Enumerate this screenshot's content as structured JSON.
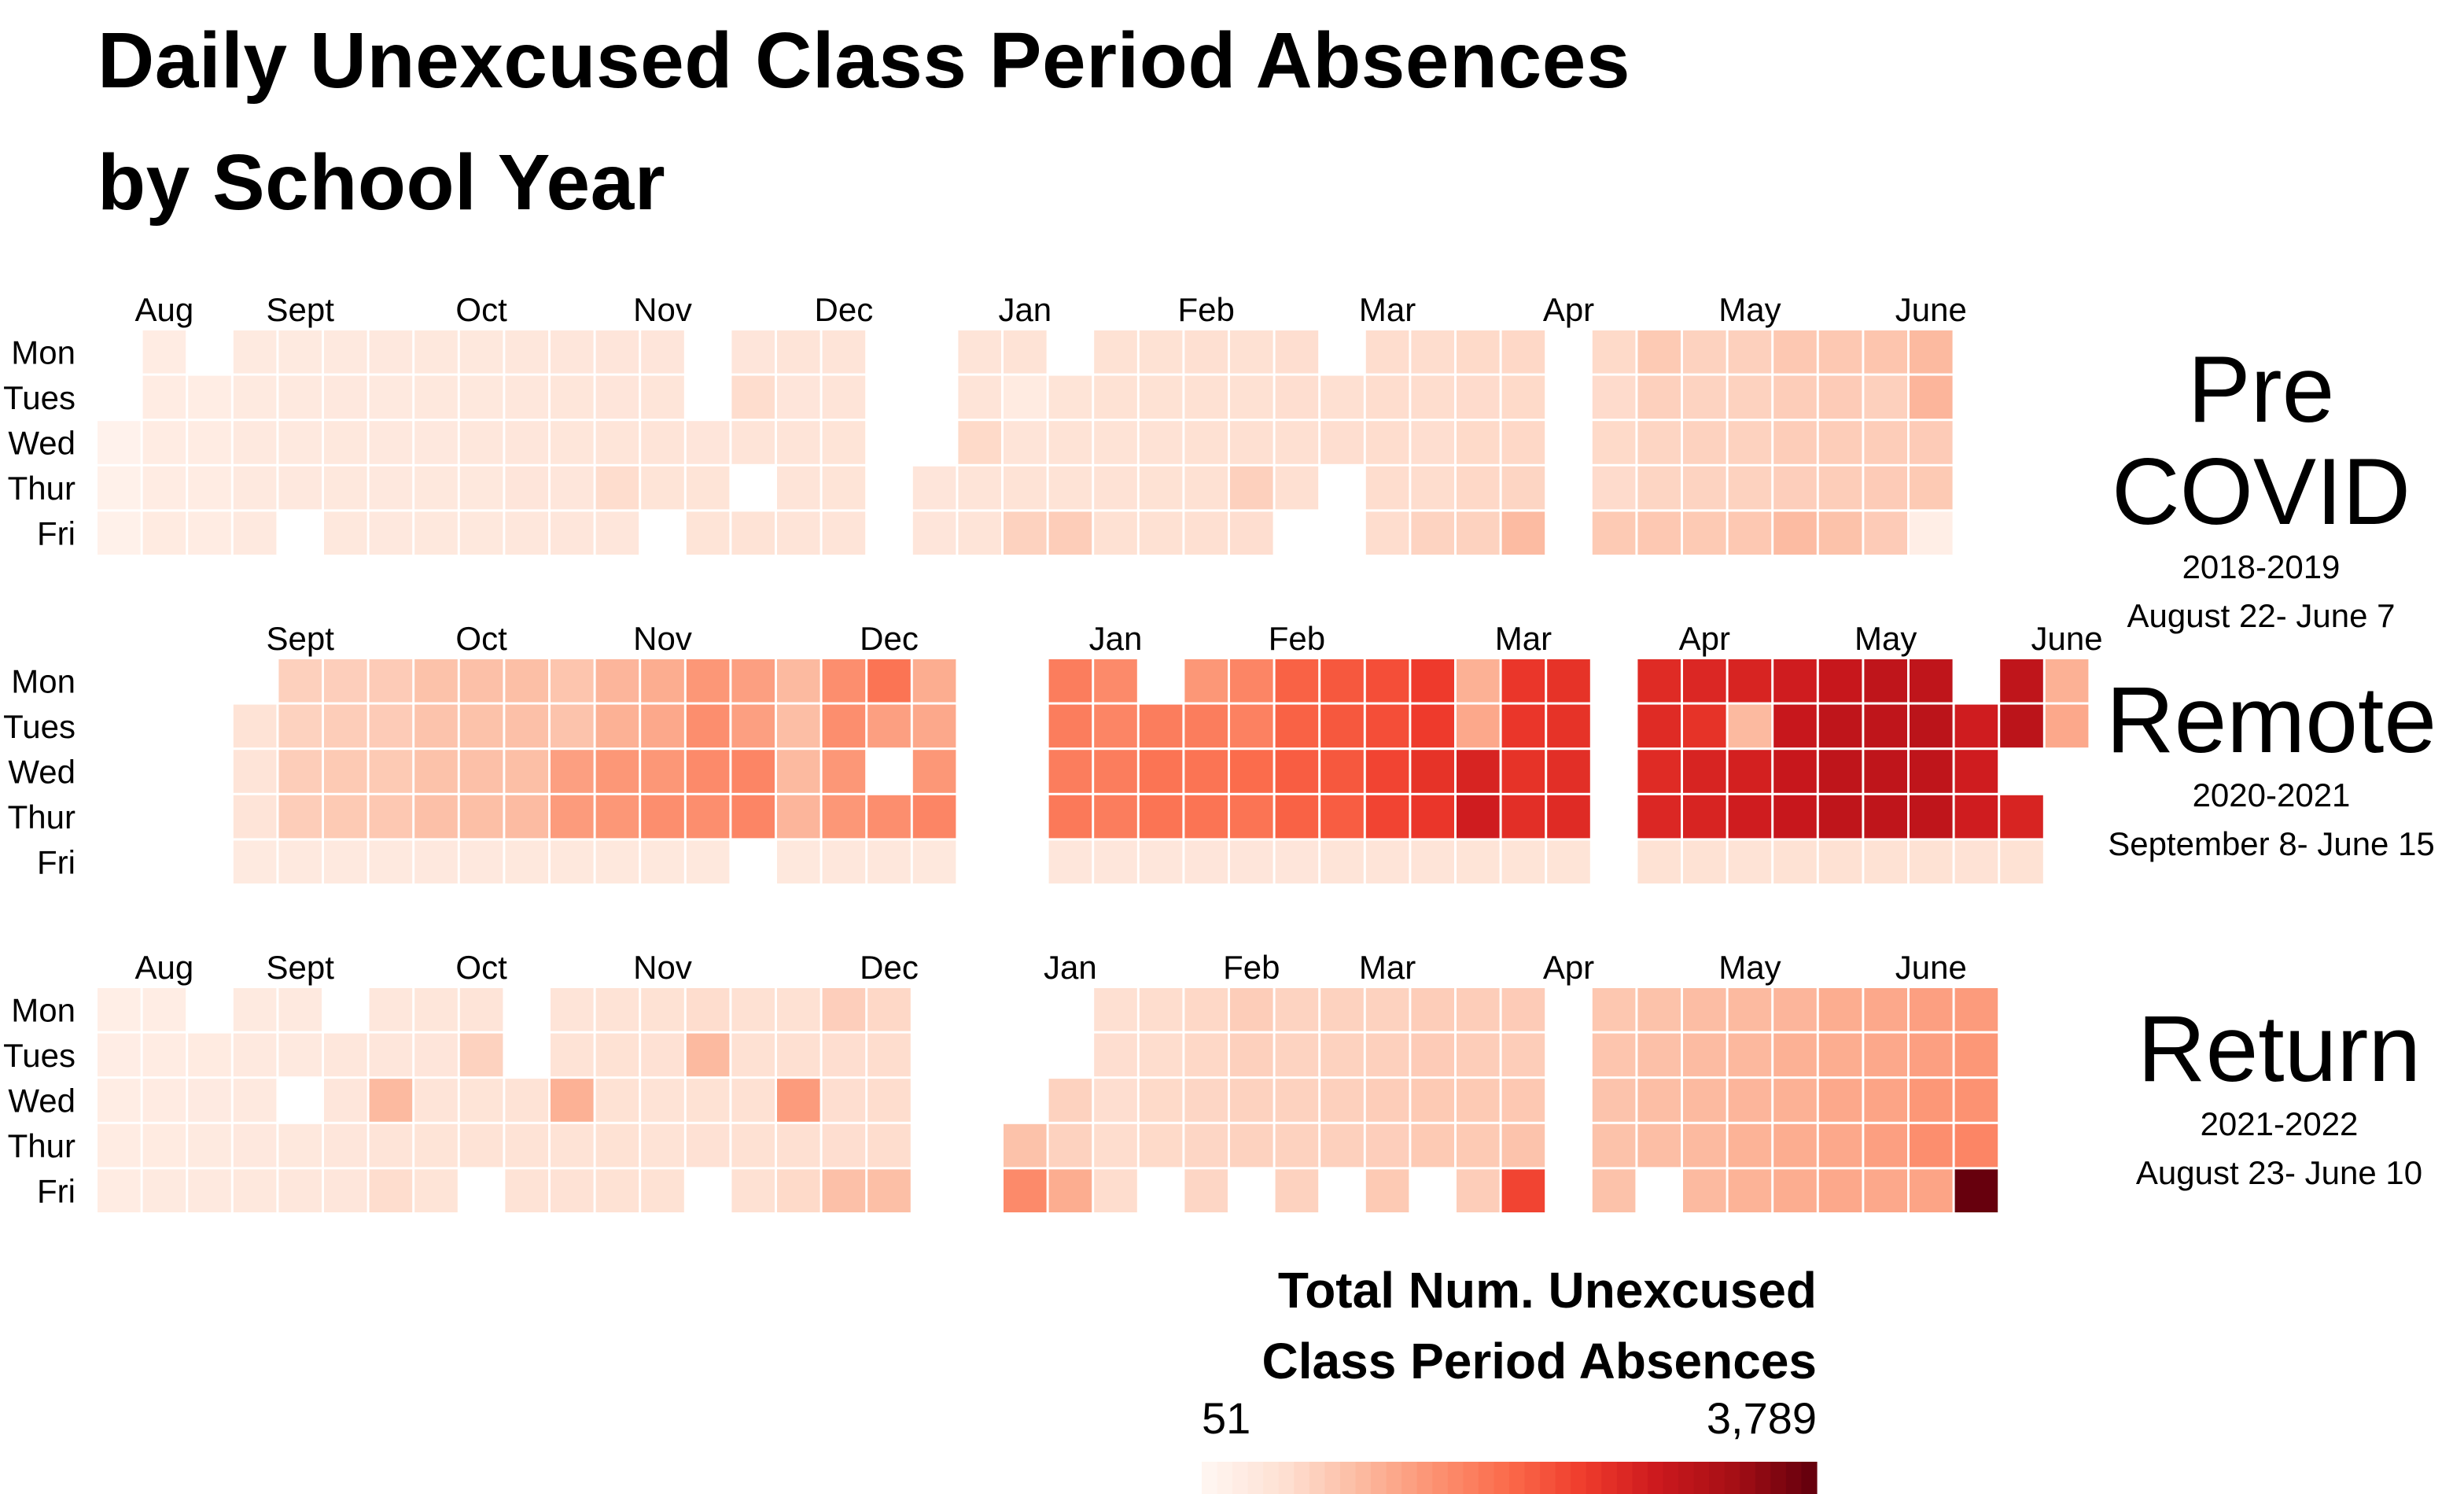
{
  "title": {
    "line1": "Daily Unexcused Class Period Absences",
    "line2": "by School Year"
  },
  "weekdays": [
    "Mon",
    "Tues",
    "Wed",
    "Thur",
    "Fri"
  ],
  "legend": {
    "title_line1": "Total Num. Unexcused",
    "title_line2": "Class Period Absences",
    "min_label": "51",
    "max_label": "3,789",
    "min_value": 51,
    "max_value": 3789,
    "color_low": "#fff5f0",
    "color_high": "#67000d"
  },
  "chart_data": [
    {
      "type": "heatmap",
      "name": "Pre COVID",
      "school_year": "2018-2019",
      "date_range": "August 22- June 7",
      "month_labels": [
        {
          "label": "Aug",
          "week": 1
        },
        {
          "label": "Sept",
          "week": 4
        },
        {
          "label": "Oct",
          "week": 8
        },
        {
          "label": "Nov",
          "week": 12
        },
        {
          "label": "Dec",
          "week": 16
        },
        {
          "label": "Jan",
          "week": 20
        },
        {
          "label": "Feb",
          "week": 24
        },
        {
          "label": "Mar",
          "week": 28
        },
        {
          "label": "Apr",
          "week": 32
        },
        {
          "label": "May",
          "week": 36
        },
        {
          "label": "June",
          "week": 40
        }
      ],
      "weeks": [
        [
          null,
          null,
          120,
          140,
          150
        ],
        [
          250,
          260,
          260,
          260,
          280
        ],
        [
          null,
          240,
          250,
          260,
          260
        ],
        [
          300,
          300,
          320,
          320,
          320
        ],
        [
          300,
          310,
          320,
          330,
          null
        ],
        [
          320,
          330,
          340,
          340,
          340
        ],
        [
          330,
          320,
          330,
          330,
          330
        ],
        [
          340,
          340,
          330,
          350,
          340
        ],
        [
          350,
          350,
          360,
          350,
          350
        ],
        [
          370,
          370,
          380,
          400,
          370
        ],
        [
          380,
          390,
          390,
          380,
          380
        ],
        [
          400,
          400,
          410,
          560,
          380
        ],
        [
          400,
          410,
          420,
          440,
          null
        ],
        [
          null,
          null,
          400,
          440,
          440
        ],
        [
          400,
          560,
          420,
          null,
          460
        ],
        [
          420,
          400,
          420,
          430,
          420
        ],
        [
          430,
          430,
          440,
          440,
          430
        ],
        [
          null,
          null,
          null,
          null,
          null
        ],
        [
          null,
          null,
          null,
          400,
          400
        ],
        [
          430,
          420,
          600,
          420,
          430
        ],
        [
          450,
          280,
          430,
          460,
          700
        ],
        [
          null,
          440,
          460,
          460,
          760
        ],
        [
          480,
          480,
          460,
          470,
          500
        ],
        [
          480,
          480,
          470,
          480,
          500
        ],
        [
          520,
          500,
          500,
          500,
          520
        ],
        [
          500,
          500,
          520,
          720,
          540
        ],
        [
          540,
          540,
          520,
          520,
          null
        ],
        [
          null,
          520,
          540,
          null,
          null
        ],
        [
          560,
          560,
          560,
          560,
          560
        ],
        [
          560,
          560,
          540,
          560,
          680
        ],
        [
          600,
          580,
          600,
          620,
          700
        ],
        [
          620,
          600,
          620,
          660,
          980
        ],
        [
          null,
          null,
          null,
          null,
          null
        ],
        [
          600,
          580,
          600,
          580,
          800
        ],
        [
          800,
          720,
          660,
          660,
          820
        ],
        [
          700,
          680,
          700,
          680,
          800
        ],
        [
          720,
          700,
          700,
          700,
          820
        ],
        [
          820,
          760,
          760,
          740,
          980
        ],
        [
          820,
          780,
          760,
          760,
          900
        ],
        [
          860,
          720,
          760,
          780,
          780
        ],
        [
          1000,
          1050,
          780,
          800,
          200
        ]
      ]
    },
    {
      "type": "heatmap",
      "name": "Remote",
      "school_year": "2020-2021",
      "date_range": "September 8- June 15",
      "month_labels": [
        {
          "label": "Sept",
          "week": 4
        },
        {
          "label": "Oct",
          "week": 8
        },
        {
          "label": "Nov",
          "week": 12
        },
        {
          "label": "Dec",
          "week": 17
        },
        {
          "label": "Jan",
          "week": 22
        },
        {
          "label": "Feb",
          "week": 26
        },
        {
          "label": "Mar",
          "week": 31
        },
        {
          "label": "Apr",
          "week": 35
        },
        {
          "label": "May",
          "week": 39
        },
        {
          "label": "June",
          "week": 43
        }
      ],
      "weeks": [
        [
          null,
          null,
          null,
          null,
          null
        ],
        [
          null,
          null,
          null,
          null,
          null
        ],
        [
          null,
          null,
          null,
          null,
          null
        ],
        [
          null,
          450,
          420,
          430,
          300
        ],
        [
          720,
          700,
          760,
          760,
          310
        ],
        [
          740,
          760,
          800,
          800,
          320
        ],
        [
          780,
          780,
          800,
          820,
          320
        ],
        [
          900,
          880,
          900,
          920,
          330
        ],
        [
          920,
          900,
          920,
          940,
          330
        ],
        [
          940,
          920,
          940,
          980,
          340
        ],
        [
          860,
          880,
          1300,
          1350,
          340
        ],
        [
          1050,
          1100,
          1400,
          1400,
          340
        ],
        [
          1150,
          1200,
          1400,
          1500,
          340
        ],
        [
          1400,
          1500,
          1550,
          1500,
          340
        ],
        [
          1300,
          1300,
          1600,
          1600,
          null
        ],
        [
          1000,
          950,
          1000,
          1050,
          340
        ],
        [
          1500,
          1500,
          1400,
          1400,
          360
        ],
        [
          1800,
          1300,
          null,
          1500,
          360
        ],
        [
          1150,
          1200,
          1400,
          1600,
          340
        ],
        [
          null,
          null,
          null,
          null,
          null
        ],
        [
          null,
          null,
          null,
          null,
          null
        ],
        [
          1700,
          1700,
          1700,
          1750,
          380
        ],
        [
          1550,
          1600,
          1700,
          1700,
          380
        ],
        [
          null,
          1700,
          1800,
          1800,
          380
        ],
        [
          1400,
          1700,
          1800,
          1800,
          400
        ],
        [
          1600,
          1650,
          1900,
          1800,
          400
        ],
        [
          2000,
          2000,
          2050,
          2000,
          400
        ],
        [
          2100,
          2100,
          2100,
          2050,
          420
        ],
        [
          2200,
          2200,
          2300,
          2300,
          420
        ],
        [
          2400,
          2400,
          2500,
          2450,
          420
        ],
        [
          1100,
          1200,
          2700,
          2800,
          440
        ],
        [
          2450,
          2450,
          2500,
          2550,
          440
        ],
        [
          2500,
          2500,
          2550,
          2600,
          440
        ],
        [
          null,
          null,
          null,
          null,
          null
        ],
        [
          2600,
          2600,
          2600,
          2650,
          480
        ],
        [
          2650,
          2500,
          2700,
          2700,
          480
        ],
        [
          2700,
          1000,
          2750,
          2800,
          460
        ],
        [
          2800,
          2900,
          2900,
          2900,
          480
        ],
        [
          2900,
          3000,
          3000,
          3000,
          500
        ],
        [
          3000,
          3000,
          3000,
          3000,
          480
        ],
        [
          3000,
          3050,
          3000,
          3000,
          480
        ],
        [
          null,
          2800,
          2800,
          2800,
          470
        ],
        [
          3000,
          3050,
          null,
          2700,
          480
        ],
        [
          1100,
          1200,
          null,
          null,
          null
        ]
      ]
    },
    {
      "type": "heatmap",
      "name": "Return",
      "school_year": "2021-2022",
      "date_range": "August 23- June 10",
      "month_labels": [
        {
          "label": "Aug",
          "week": 1
        },
        {
          "label": "Sept",
          "week": 4
        },
        {
          "label": "Oct",
          "week": 8
        },
        {
          "label": "Nov",
          "week": 12
        },
        {
          "label": "Dec",
          "week": 17
        },
        {
          "label": "Jan",
          "week": 21
        },
        {
          "label": "Feb",
          "week": 25
        },
        {
          "label": "Mar",
          "week": 28
        },
        {
          "label": "Apr",
          "week": 32
        },
        {
          "label": "May",
          "week": 36
        },
        {
          "label": "June",
          "week": 40
        }
      ],
      "weeks": [
        [
          200,
          220,
          240,
          250,
          260
        ],
        [
          240,
          250,
          270,
          280,
          300
        ],
        [
          null,
          280,
          290,
          300,
          320
        ],
        [
          300,
          310,
          320,
          330,
          340
        ],
        [
          320,
          320,
          null,
          340,
          360
        ],
        [
          null,
          360,
          380,
          380,
          380
        ],
        [
          370,
          380,
          1000,
          420,
          560
        ],
        [
          390,
          400,
          430,
          440,
          440
        ],
        [
          420,
          700,
          440,
          450,
          null
        ],
        [
          null,
          null,
          450,
          450,
          460
        ],
        [
          430,
          460,
          1100,
          460,
          470
        ],
        [
          460,
          480,
          480,
          480,
          480
        ],
        [
          480,
          490,
          460,
          460,
          480
        ],
        [
          560,
          1000,
          480,
          490,
          null
        ],
        [
          500,
          500,
          500,
          500,
          500
        ],
        [
          500,
          520,
          1350,
          520,
          600
        ],
        [
          740,
          540,
          540,
          540,
          920
        ],
        [
          620,
          560,
          560,
          560,
          940
        ],
        [
          null,
          null,
          null,
          null,
          null
        ],
        [
          null,
          null,
          null,
          null,
          null
        ],
        [
          null,
          null,
          null,
          900,
          1550
        ],
        [
          null,
          null,
          700,
          700,
          1150
        ],
        [
          520,
          540,
          540,
          560,
          560
        ],
        [
          560,
          560,
          600,
          600,
          null
        ],
        [
          620,
          620,
          640,
          640,
          640
        ],
        [
          760,
          720,
          700,
          700,
          null
        ],
        [
          680,
          680,
          700,
          700,
          700
        ],
        [
          700,
          700,
          720,
          720,
          null
        ],
        [
          700,
          720,
          760,
          740,
          800
        ],
        [
          760,
          780,
          800,
          800,
          null
        ],
        [
          760,
          760,
          800,
          800,
          760
        ],
        [
          780,
          760,
          820,
          880,
          2300
        ],
        [
          null,
          null,
          null,
          null,
          null
        ],
        [
          840,
          860,
          880,
          900,
          900
        ],
        [
          900,
          920,
          950,
          950,
          null
        ],
        [
          960,
          980,
          1000,
          1000,
          1000
        ],
        [
          1000,
          1020,
          1050,
          1080,
          1080
        ],
        [
          1050,
          1100,
          1100,
          1150,
          1150
        ],
        [
          1150,
          1150,
          1200,
          1200,
          1200
        ],
        [
          1200,
          1200,
          1250,
          1300,
          1200
        ],
        [
          1300,
          1300,
          1400,
          1500,
          1250
        ],
        [
          1350,
          1400,
          1450,
          1600,
          3789
        ]
      ]
    }
  ]
}
